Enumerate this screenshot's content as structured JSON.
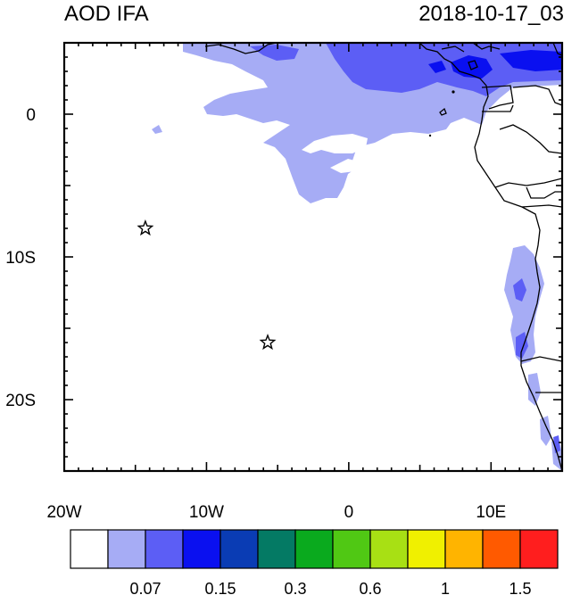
{
  "title_left": "AOD IFA",
  "title_right": "2018-10-17_03",
  "map": {
    "lon_range": [
      -20,
      15
    ],
    "lat_range": [
      -25,
      5
    ],
    "x_tick_labels": [
      {
        "lon": -20,
        "text": "20W"
      },
      {
        "lon": -10,
        "text": "10W"
      },
      {
        "lon": 0,
        "text": "0"
      },
      {
        "lon": 10,
        "text": "10E"
      }
    ],
    "y_tick_labels": [
      {
        "lat": 0,
        "text": "0"
      },
      {
        "lat": -10,
        "text": "10S"
      },
      {
        "lat": -20,
        "text": "20S"
      }
    ],
    "stars": [
      {
        "lon": -14.3,
        "lat": -8.0
      },
      {
        "lon": -5.7,
        "lat": -16.0
      }
    ]
  },
  "colorbar": {
    "colors": [
      "#ffffff",
      "#a6acf5",
      "#5c5ef5",
      "#0a10f0",
      "#0a3cb4",
      "#047a64",
      "#0aaa1e",
      "#50c814",
      "#a8e014",
      "#f0f000",
      "#ffb400",
      "#ff5a00",
      "#ff1e1e"
    ],
    "labels": [
      "0.07",
      "0.15",
      "0.3",
      "0.6",
      "1",
      "1.5"
    ]
  }
}
